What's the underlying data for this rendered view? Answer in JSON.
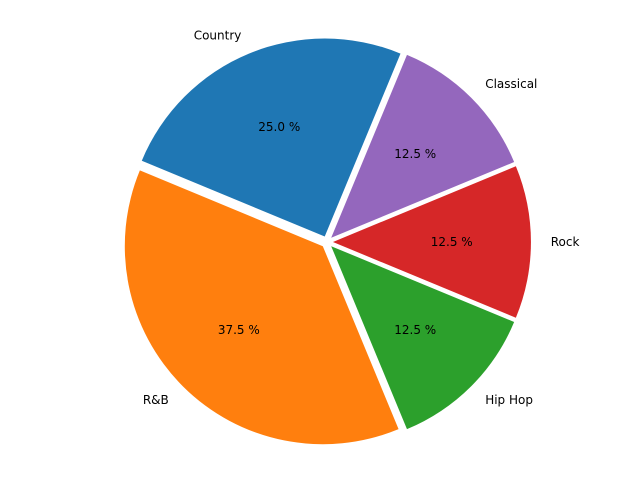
{
  "chart_data": {
    "type": "pie",
    "slices": [
      {
        "label": "Country",
        "value": 25.0,
        "pct_text": "25.0 %",
        "color": "#1f77b4"
      },
      {
        "label": "R&B",
        "value": 37.5,
        "pct_text": "37.5 %",
        "color": "#ff7f0e"
      },
      {
        "label": "Hip Hop",
        "value": 12.5,
        "pct_text": "12.5 %",
        "color": "#2ca02c"
      },
      {
        "label": "Rock",
        "value": 12.5,
        "pct_text": "12.5 %",
        "color": "#d62728"
      },
      {
        "label": "Classical",
        "value": 12.5,
        "pct_text": "12.5 %",
        "color": "#9467bd"
      }
    ],
    "start_angle_deg": 67.5,
    "direction": "counterclockwise",
    "exploded": true
  }
}
